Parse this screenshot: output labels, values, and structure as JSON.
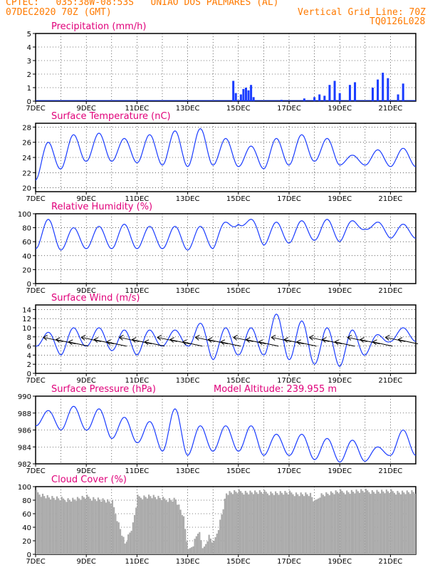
{
  "header": {
    "line1": "CPTEC:   035:38W-08:53S   UNIAO DOS PALMARES (AL)",
    "line2_left": "07DEC2020 70Z (GMT)",
    "line2_right": "Vertical Grid Line: 70Z",
    "line3_right": "TQ0126L028"
  },
  "colors": {
    "header": "#ff7a00",
    "title": "#e0007a",
    "line": "#1a3cff",
    "cloud": "#aaaaaa",
    "grid": "#000000"
  },
  "x_ticks": [
    "7DEC",
    "9DEC",
    "11DEC",
    "13DEC",
    "15DEC",
    "17DEC",
    "19DEC",
    "21DEC"
  ],
  "chart_data": [
    {
      "id": "precip",
      "type": "bar",
      "title": "Precipitation (mm/h)",
      "ylim": [
        0,
        5
      ],
      "yticks": [
        0,
        1,
        2,
        3,
        4,
        5
      ],
      "xlim_days": [
        7,
        22
      ],
      "events": [
        {
          "day": 14.8,
          "value": 1.5
        },
        {
          "day": 14.9,
          "value": 0.6
        },
        {
          "day": 15.1,
          "value": 0.5
        },
        {
          "day": 15.2,
          "value": 0.9
        },
        {
          "day": 15.3,
          "value": 1.0
        },
        {
          "day": 15.4,
          "value": 0.8
        },
        {
          "day": 15.5,
          "value": 1.2
        },
        {
          "day": 15.6,
          "value": 0.3
        },
        {
          "day": 16.7,
          "value": 0.1
        },
        {
          "day": 17.6,
          "value": 0.2
        },
        {
          "day": 18.0,
          "value": 0.3
        },
        {
          "day": 18.2,
          "value": 0.5
        },
        {
          "day": 18.4,
          "value": 0.4
        },
        {
          "day": 18.6,
          "value": 1.2
        },
        {
          "day": 18.8,
          "value": 1.5
        },
        {
          "day": 19.0,
          "value": 0.6
        },
        {
          "day": 19.4,
          "value": 1.2
        },
        {
          "day": 19.6,
          "value": 1.4
        },
        {
          "day": 20.3,
          "value": 1.0
        },
        {
          "day": 20.5,
          "value": 1.6
        },
        {
          "day": 20.7,
          "value": 2.1
        },
        {
          "day": 20.9,
          "value": 1.7
        },
        {
          "day": 21.3,
          "value": 0.5
        },
        {
          "day": 21.5,
          "value": 1.3
        }
      ]
    },
    {
      "id": "temp",
      "type": "line",
      "title": "Surface Temperature (nC)",
      "ylim": [
        19.5,
        28.5
      ],
      "yticks": [
        20,
        22,
        24,
        26,
        28
      ],
      "xlim_days": [
        7,
        22
      ],
      "days_max": [
        26.0,
        27.0,
        27.2,
        26.5,
        27.0,
        27.5,
        27.8,
        26.5,
        25.5,
        26.5,
        27.0,
        26.5,
        24.3,
        25.0,
        25.2
      ],
      "days_min": [
        21.0,
        22.5,
        23.5,
        23.5,
        23.3,
        23.0,
        22.8,
        23.0,
        22.8,
        22.5,
        23.0,
        23.5,
        23.0,
        23.0,
        22.8
      ]
    },
    {
      "id": "rh",
      "type": "line",
      "title": "Relative Humidity (%)",
      "ylim": [
        0,
        100
      ],
      "yticks": [
        0,
        20,
        40,
        60,
        80,
        100
      ],
      "xlim_days": [
        7,
        22
      ],
      "days_max": [
        92,
        80,
        82,
        85,
        82,
        82,
        82,
        88,
        92,
        88,
        90,
        92,
        90,
        88,
        85
      ],
      "days_min": [
        50,
        48,
        50,
        50,
        50,
        50,
        48,
        50,
        85,
        55,
        58,
        62,
        60,
        78,
        65
      ]
    },
    {
      "id": "wind",
      "type": "line",
      "title": "Surface Wind (m/s)",
      "ylim": [
        0,
        15
      ],
      "yticks": [
        0,
        2,
        4,
        6,
        8,
        10,
        12,
        14
      ],
      "xlim_days": [
        7,
        22
      ],
      "days_max": [
        9,
        10,
        10,
        9.5,
        9.5,
        9.5,
        11,
        10,
        10,
        13,
        11.5,
        10,
        9.5,
        8.5,
        10
      ],
      "days_min": [
        6,
        4,
        6,
        5,
        4,
        6,
        6,
        3,
        4,
        4,
        3,
        2,
        1.5,
        4,
        7
      ],
      "barbs_direction": "from east"
    },
    {
      "id": "press",
      "type": "line",
      "title": "Surface Pressure (hPa)",
      "annotation": "Model Altitude: 239.955  m",
      "ylim": [
        982,
        990
      ],
      "yticks": [
        982,
        984,
        986,
        988,
        990
      ],
      "xlim_days": [
        7,
        22
      ],
      "days_max": [
        988.3,
        988.8,
        988.5,
        987.5,
        987.0,
        988.5,
        986.5,
        986.5,
        986.5,
        985.5,
        985.5,
        985.0,
        984.8,
        984.0,
        986.0
      ],
      "days_min": [
        986.5,
        986.0,
        986.0,
        985.0,
        984.5,
        983.5,
        983.0,
        983.5,
        983.5,
        983.0,
        983.0,
        982.5,
        982.2,
        982.3,
        983.0
      ]
    },
    {
      "id": "cloud",
      "type": "area",
      "title": "Cloud Cover (%)",
      "ylim": [
        0,
        100
      ],
      "yticks": [
        0,
        20,
        40,
        60,
        80,
        100
      ],
      "xlim_days": [
        7,
        22
      ],
      "profile": [
        {
          "day": 7.0,
          "value": 95
        },
        {
          "day": 7.5,
          "value": 88
        },
        {
          "day": 8.0,
          "value": 85
        },
        {
          "day": 8.5,
          "value": 85
        },
        {
          "day": 9.0,
          "value": 88
        },
        {
          "day": 9.5,
          "value": 85
        },
        {
          "day": 10.0,
          "value": 80
        },
        {
          "day": 10.2,
          "value": 55
        },
        {
          "day": 10.5,
          "value": 20
        },
        {
          "day": 10.8,
          "value": 45
        },
        {
          "day": 11.0,
          "value": 88
        },
        {
          "day": 11.5,
          "value": 90
        },
        {
          "day": 12.0,
          "value": 85
        },
        {
          "day": 12.5,
          "value": 85
        },
        {
          "day": 12.8,
          "value": 60
        },
        {
          "day": 13.0,
          "value": 8
        },
        {
          "day": 13.2,
          "value": 20
        },
        {
          "day": 13.4,
          "value": 40
        },
        {
          "day": 13.6,
          "value": 10
        },
        {
          "day": 13.8,
          "value": 30
        },
        {
          "day": 14.0,
          "value": 20
        },
        {
          "day": 14.2,
          "value": 45
        },
        {
          "day": 14.5,
          "value": 94
        },
        {
          "day": 15.0,
          "value": 96
        },
        {
          "day": 16.0,
          "value": 95
        },
        {
          "day": 17.0,
          "value": 94
        },
        {
          "day": 17.8,
          "value": 92
        },
        {
          "day": 18.0,
          "value": 80
        },
        {
          "day": 18.2,
          "value": 92
        },
        {
          "day": 19.0,
          "value": 96
        },
        {
          "day": 20.0,
          "value": 97
        },
        {
          "day": 21.0,
          "value": 96
        },
        {
          "day": 22.0,
          "value": 95
        }
      ]
    }
  ]
}
